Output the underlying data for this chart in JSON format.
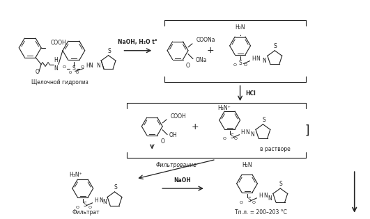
{
  "bg_color": "#f0f0f0",
  "fig_width": 5.31,
  "fig_height": 3.15,
  "dpi": 100,
  "text_color": "#222222",
  "line_color": "#222222",
  "font_size": 6.5,
  "font_size_small": 5.5,
  "font_size_bold": 7,
  "labels": {
    "alkaline": "Щелочной гидролиз",
    "reagent1": "NaOH, H₂O t°",
    "hcl": "HCl",
    "in_solution": "в растворе",
    "filtration": "Фильтрование",
    "naoh": "NaOH",
    "filtrate": "Фильтрат",
    "tpl": "Tп.л. = 200–203 °C"
  }
}
